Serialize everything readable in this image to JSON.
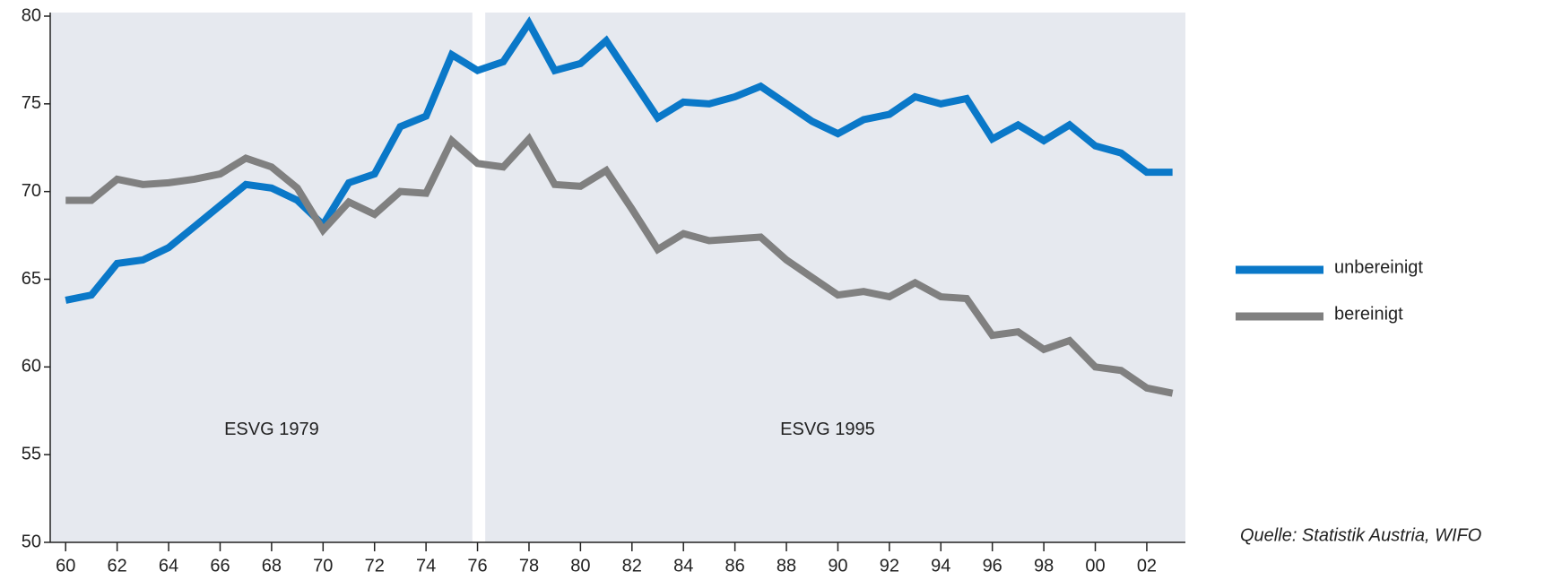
{
  "chart_data": {
    "type": "line",
    "x": [
      1960,
      1961,
      1962,
      1963,
      1964,
      1965,
      1966,
      1967,
      1968,
      1969,
      1970,
      1971,
      1972,
      1973,
      1974,
      1975,
      1976,
      1977,
      1978,
      1979,
      1980,
      1981,
      1982,
      1983,
      1984,
      1985,
      1986,
      1987,
      1988,
      1989,
      1990,
      1991,
      1992,
      1993,
      1994,
      1995,
      1996,
      1997,
      1998,
      1999,
      2000,
      2001,
      2002,
      2003
    ],
    "series": [
      {
        "name": "unbereinigt",
        "color": "#0a78c8",
        "values": [
          63.8,
          64.1,
          65.9,
          66.1,
          66.8,
          68.0,
          69.2,
          70.4,
          70.2,
          69.5,
          68.1,
          70.5,
          71.0,
          73.7,
          74.3,
          77.8,
          76.9,
          77.4,
          79.6,
          76.9,
          77.3,
          78.6,
          76.4,
          74.2,
          75.1,
          75.0,
          75.4,
          76.0,
          75.0,
          74.0,
          73.3,
          74.1,
          74.4,
          75.4,
          75.0,
          75.3,
          73.0,
          73.8,
          72.9,
          73.8,
          72.6,
          72.2,
          71.1,
          71.1
        ]
      },
      {
        "name": "bereinigt",
        "color": "#808080",
        "values": [
          69.5,
          69.5,
          70.7,
          70.4,
          70.5,
          70.7,
          71.0,
          71.9,
          71.4,
          70.2,
          67.8,
          69.4,
          68.7,
          70.0,
          69.9,
          72.9,
          71.6,
          71.4,
          73.0,
          70.4,
          70.3,
          71.2,
          69.0,
          66.7,
          67.6,
          67.2,
          67.3,
          67.4,
          66.1,
          65.1,
          64.1,
          64.3,
          64.0,
          64.8,
          64.0,
          63.9,
          61.8,
          62.0,
          61.0,
          61.5,
          60.0,
          59.8,
          58.8,
          58.5
        ]
      }
    ],
    "xlim": [
      1959.4,
      2003.5
    ],
    "xticks": [
      {
        "value": 1960,
        "label": "60"
      },
      {
        "value": 1962,
        "label": "62"
      },
      {
        "value": 1964,
        "label": "64"
      },
      {
        "value": 1966,
        "label": "66"
      },
      {
        "value": 1968,
        "label": "68"
      },
      {
        "value": 1970,
        "label": "70"
      },
      {
        "value": 1972,
        "label": "72"
      },
      {
        "value": 1974,
        "label": "74"
      },
      {
        "value": 1976,
        "label": "76"
      },
      {
        "value": 1978,
        "label": "78"
      },
      {
        "value": 1980,
        "label": "80"
      },
      {
        "value": 1982,
        "label": "82"
      },
      {
        "value": 1984,
        "label": "84"
      },
      {
        "value": 1986,
        "label": "86"
      },
      {
        "value": 1988,
        "label": "88"
      },
      {
        "value": 1990,
        "label": "90"
      },
      {
        "value": 1992,
        "label": "92"
      },
      {
        "value": 1994,
        "label": "94"
      },
      {
        "value": 1996,
        "label": "96"
      },
      {
        "value": 1998,
        "label": "98"
      },
      {
        "value": 2000,
        "label": "00"
      },
      {
        "value": 2002,
        "label": "02"
      }
    ],
    "ylim": [
      50,
      80
    ],
    "yticks": [
      50,
      55,
      60,
      65,
      70,
      75,
      80
    ],
    "periods": [
      {
        "label": "ESVG 1979",
        "start": 1959.4,
        "end": 1975.8,
        "label_x": 1968,
        "label_y": 56.4
      },
      {
        "label": "ESVG 1995",
        "start": 1976.3,
        "end": 2003.5,
        "label_x": 1989.6,
        "label_y": 56.4
      }
    ],
    "background": "#e6e9ef",
    "source": "Quelle: Statistik Austria, WIFO",
    "legend": "right"
  }
}
